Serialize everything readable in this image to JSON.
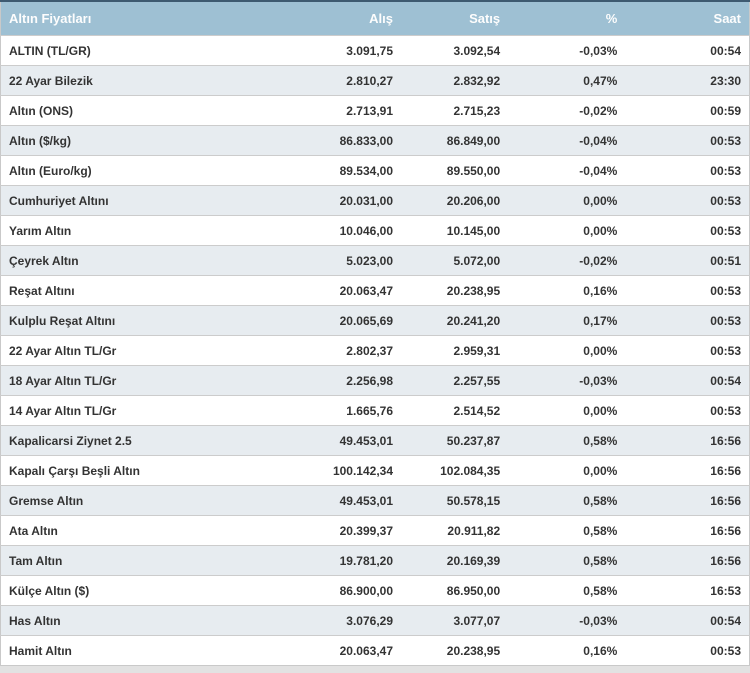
{
  "page": {
    "background_color": "#e2e2e2",
    "accent_top_border_color": "#3e5a70"
  },
  "table": {
    "colors": {
      "header_background": "#9ec0d3",
      "header_text": "#fdfdfd",
      "row_background": "#ffffff",
      "row_alternate_background": "#e7ecf0",
      "row_divider": "#cccccc",
      "cell_text": "#333333"
    },
    "columns": [
      "Altın Fiyatları",
      "Alış",
      "Satış",
      "%",
      "Saat"
    ],
    "rows": [
      {
        "name": "ALTIN (TL/GR)",
        "buy": "3.091,75",
        "sell": "3.092,54",
        "change": "-0,03%",
        "time": "00:54"
      },
      {
        "name": "22 Ayar Bilezik",
        "buy": "2.810,27",
        "sell": "2.832,92",
        "change": "0,47%",
        "time": "23:30"
      },
      {
        "name": "Altın (ONS)",
        "buy": "2.713,91",
        "sell": "2.715,23",
        "change": "-0,02%",
        "time": "00:59"
      },
      {
        "name": "Altın ($/kg)",
        "buy": "86.833,00",
        "sell": "86.849,00",
        "change": "-0,04%",
        "time": "00:53"
      },
      {
        "name": "Altın (Euro/kg)",
        "buy": "89.534,00",
        "sell": "89.550,00",
        "change": "-0,04%",
        "time": "00:53"
      },
      {
        "name": "Cumhuriyet Altını",
        "buy": "20.031,00",
        "sell": "20.206,00",
        "change": "0,00%",
        "time": "00:53"
      },
      {
        "name": "Yarım Altın",
        "buy": "10.046,00",
        "sell": "10.145,00",
        "change": "0,00%",
        "time": "00:53"
      },
      {
        "name": "Çeyrek Altın",
        "buy": "5.023,00",
        "sell": "5.072,00",
        "change": "-0,02%",
        "time": "00:51"
      },
      {
        "name": "Reşat Altını",
        "buy": "20.063,47",
        "sell": "20.238,95",
        "change": "0,16%",
        "time": "00:53"
      },
      {
        "name": "Kulplu Reşat Altını",
        "buy": "20.065,69",
        "sell": "20.241,20",
        "change": "0,17%",
        "time": "00:53"
      },
      {
        "name": "22 Ayar Altın TL/Gr",
        "buy": "2.802,37",
        "sell": "2.959,31",
        "change": "0,00%",
        "time": "00:53"
      },
      {
        "name": "18 Ayar Altın TL/Gr",
        "buy": "2.256,98",
        "sell": "2.257,55",
        "change": "-0,03%",
        "time": "00:54"
      },
      {
        "name": "14 Ayar Altın TL/Gr",
        "buy": "1.665,76",
        "sell": "2.514,52",
        "change": "0,00%",
        "time": "00:53"
      },
      {
        "name": "Kapalicarsi Ziynet 2.5",
        "buy": "49.453,01",
        "sell": "50.237,87",
        "change": "0,58%",
        "time": "16:56"
      },
      {
        "name": "Kapalı Çarşı Beşli Altın",
        "buy": "100.142,34",
        "sell": "102.084,35",
        "change": "0,00%",
        "time": "16:56"
      },
      {
        "name": "Gremse Altın",
        "buy": "49.453,01",
        "sell": "50.578,15",
        "change": "0,58%",
        "time": "16:56"
      },
      {
        "name": "Ata Altın",
        "buy": "20.399,37",
        "sell": "20.911,82",
        "change": "0,58%",
        "time": "16:56"
      },
      {
        "name": "Tam Altın",
        "buy": "19.781,20",
        "sell": "20.169,39",
        "change": "0,58%",
        "time": "16:56"
      },
      {
        "name": "Külçe Altın ($)",
        "buy": "86.900,00",
        "sell": "86.950,00",
        "change": "0,58%",
        "time": "16:53"
      },
      {
        "name": "Has Altın",
        "buy": "3.076,29",
        "sell": "3.077,07",
        "change": "-0,03%",
        "time": "00:54"
      },
      {
        "name": "Hamit Altın",
        "buy": "20.063,47",
        "sell": "20.238,95",
        "change": "0,16%",
        "time": "00:53"
      }
    ]
  }
}
